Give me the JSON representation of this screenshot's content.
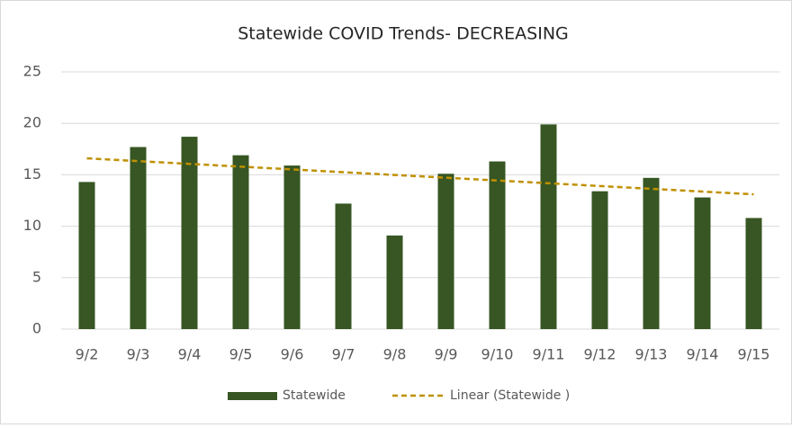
{
  "chart_data": {
    "type": "bar",
    "title": "Statewide COVID Trends- DECREASING",
    "categories": [
      "9/2",
      "9/3",
      "9/4",
      "9/5",
      "9/6",
      "9/7",
      "9/8",
      "9/9",
      "9/10",
      "9/11",
      "9/12",
      "9/13",
      "9/14",
      "9/15"
    ],
    "series": [
      {
        "name": "Statewide",
        "color": "#375623",
        "values": [
          14.3,
          17.7,
          18.7,
          16.9,
          15.9,
          12.2,
          9.1,
          15.1,
          16.3,
          19.9,
          13.4,
          14.7,
          12.8,
          10.8
        ]
      }
    ],
    "trendline": {
      "name": "Linear (Statewide )",
      "color": "#bf9000",
      "values": [
        16.6,
        13.1
      ]
    },
    "ylim": [
      0,
      25
    ],
    "yticks": [
      0,
      5,
      10,
      15,
      20,
      25
    ],
    "grid": true,
    "legend": "bottom"
  }
}
